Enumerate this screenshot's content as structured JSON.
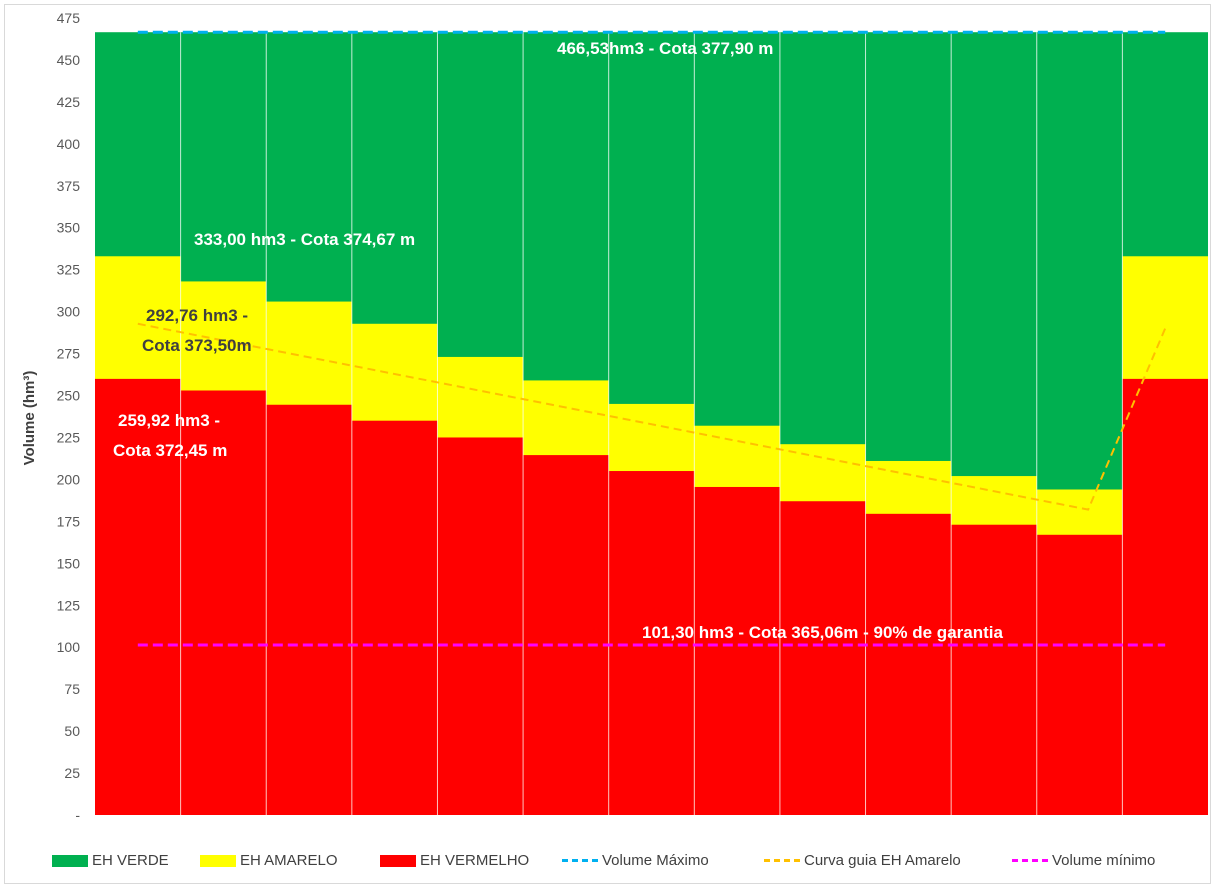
{
  "chart_data": {
    "type": "bar",
    "stacked": true,
    "title": "",
    "xlabel": "",
    "ylabel": "Volume (hm³)",
    "ylim": [
      0,
      475
    ],
    "ytick_step": 25,
    "ytick_labels": [
      "-",
      "25",
      "50",
      "75",
      "100",
      "125",
      "150",
      "175",
      "200",
      "225",
      "250",
      "275",
      "300",
      "325",
      "350",
      "375",
      "400",
      "425",
      "450",
      "475"
    ],
    "categories": [
      "",
      "",
      "",
      "",
      "",
      "",
      "",
      "",
      "",
      "",
      "",
      "",
      ""
    ],
    "series": [
      {
        "name": "EH VERDE",
        "color": "#00b050",
        "tops": [
          466.53,
          466.53,
          466.53,
          466.53,
          466.53,
          466.53,
          466.53,
          466.53,
          466.53,
          466.53,
          466.53,
          466.53,
          466.53
        ]
      },
      {
        "name": "EH AMARELO",
        "color": "#ffff00",
        "tops": [
          333.0,
          318.0,
          306.0,
          292.76,
          273.0,
          259.0,
          245.0,
          232.0,
          221.0,
          211.0,
          202.0,
          194.0,
          333.0
        ]
      },
      {
        "name": "EH VERMELHO",
        "color": "#ff0000",
        "tops": [
          259.92,
          253.0,
          244.5,
          235.0,
          225.0,
          214.5,
          205.0,
          195.5,
          187.0,
          179.5,
          173.0,
          167.0,
          259.92
        ]
      }
    ],
    "lines": [
      {
        "name": "Volume Máximo",
        "color": "#00b0f0",
        "style": "dashed",
        "x": [
          0.5,
          12.5
        ],
        "y": [
          466.53,
          466.53
        ]
      },
      {
        "name": "Curva guia EH Amarelo",
        "color": "#ffc000",
        "style": "dashed",
        "x": [
          0.5,
          11.6,
          12.5
        ],
        "y": [
          292.76,
          182.0,
          290.0
        ]
      },
      {
        "name": "Volume mínimo",
        "color": "#ff00ff",
        "style": "dashed",
        "x": [
          0.5,
          12.5
        ],
        "y": [
          101.3,
          101.3
        ]
      }
    ],
    "annotations": [
      {
        "text": "466,53hm3 - Cota  377,90 m",
        "color": "#ffffff"
      },
      {
        "text": "333,00 hm3 - Cota 374,67 m",
        "color": "#ffffff"
      },
      {
        "text": "292,76 hm3 -",
        "color": "#404040"
      },
      {
        "text": "Cota 373,50m",
        "color": "#404040"
      },
      {
        "text": "259,92 hm3 -",
        "color": "#ffffff"
      },
      {
        "text": "Cota 372,45 m",
        "color": "#ffffff"
      },
      {
        "text": "101,30 hm3 - Cota 365,06m - 90% de garantia",
        "color": "#ffffff"
      }
    ],
    "grid": false,
    "legend_position": "bottom"
  },
  "legend": {
    "items": [
      {
        "label": "EH VERDE",
        "kind": "swatch",
        "color": "#00b050"
      },
      {
        "label": "EH AMARELO",
        "kind": "swatch",
        "color": "#ffff00"
      },
      {
        "label": "EH VERMELHO",
        "kind": "swatch",
        "color": "#ff0000"
      },
      {
        "label": "Volume Máximo",
        "kind": "dash",
        "color": "#00b0f0"
      },
      {
        "label": "Curva guia EH Amarelo",
        "kind": "dash",
        "color": "#ffc000"
      },
      {
        "label": "Volume mínimo",
        "kind": "dash",
        "color": "#ff00ff"
      }
    ]
  }
}
